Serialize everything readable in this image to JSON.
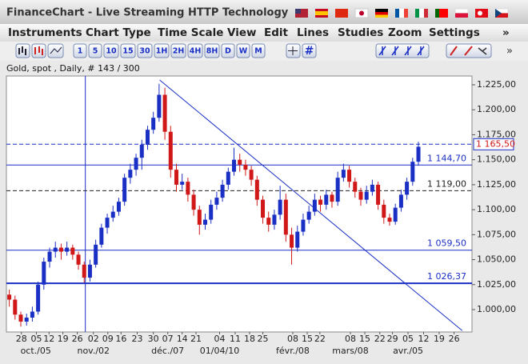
{
  "window": {
    "title": "FinanceChart - Live Streaming HTTP Technology"
  },
  "menu": [
    "Instruments",
    "Chart Type",
    "Time Scale",
    "View",
    "Edit",
    "Lines",
    "Studies",
    "Zoom",
    "Settings",
    "»"
  ],
  "toolbar": [
    "1",
    "5",
    "10",
    "15",
    "30",
    "1H",
    "2H",
    "4H",
    "8H",
    "D",
    "W",
    "M"
  ],
  "chart_data": {
    "type": "candlestick",
    "title": "Gold, spot , Daily, # 143 / 300",
    "candles": [
      [
        1015,
        1020,
        1003,
        1010
      ],
      [
        1010,
        1014,
        990,
        995
      ],
      [
        995,
        998,
        983,
        988
      ],
      [
        988,
        996,
        984,
        992
      ],
      [
        992,
        1003,
        988,
        998
      ],
      [
        998,
        1028,
        995,
        1025
      ],
      [
        1025,
        1052,
        1020,
        1048
      ],
      [
        1048,
        1062,
        1042,
        1058
      ],
      [
        1058,
        1068,
        1052,
        1062
      ],
      [
        1062,
        1066,
        1050,
        1058
      ],
      [
        1058,
        1068,
        1054,
        1062
      ],
      [
        1062,
        1065,
        1050,
        1055
      ],
      [
        1055,
        1058,
        1040,
        1045
      ],
      [
        1045,
        1048,
        1027,
        1032
      ],
      [
        1032,
        1050,
        1028,
        1045
      ],
      [
        1045,
        1070,
        1042,
        1065
      ],
      [
        1065,
        1086,
        1062,
        1082
      ],
      [
        1082,
        1096,
        1076,
        1092
      ],
      [
        1092,
        1104,
        1088,
        1098
      ],
      [
        1098,
        1112,
        1094,
        1108
      ],
      [
        1108,
        1136,
        1104,
        1132
      ],
      [
        1132,
        1146,
        1126,
        1140
      ],
      [
        1140,
        1156,
        1134,
        1152
      ],
      [
        1152,
        1170,
        1140,
        1165
      ],
      [
        1165,
        1184,
        1160,
        1180
      ],
      [
        1180,
        1198,
        1176,
        1192
      ],
      [
        1192,
        1226,
        1188,
        1215
      ],
      [
        1215,
        1222,
        1170,
        1178
      ],
      [
        1178,
        1184,
        1132,
        1140
      ],
      [
        1140,
        1146,
        1118,
        1125
      ],
      [
        1125,
        1136,
        1120,
        1128
      ],
      [
        1128,
        1132,
        1108,
        1115
      ],
      [
        1115,
        1120,
        1094,
        1100
      ],
      [
        1100,
        1104,
        1075,
        1085
      ],
      [
        1085,
        1096,
        1080,
        1090
      ],
      [
        1090,
        1110,
        1086,
        1105
      ],
      [
        1105,
        1118,
        1100,
        1112
      ],
      [
        1112,
        1130,
        1108,
        1125
      ],
      [
        1125,
        1142,
        1120,
        1138
      ],
      [
        1138,
        1162,
        1134,
        1150
      ],
      [
        1150,
        1156,
        1138,
        1145
      ],
      [
        1145,
        1150,
        1134,
        1140
      ],
      [
        1140,
        1144,
        1124,
        1130
      ],
      [
        1130,
        1134,
        1104,
        1110
      ],
      [
        1110,
        1114,
        1086,
        1092
      ],
      [
        1092,
        1098,
        1078,
        1085
      ],
      [
        1085,
        1100,
        1080,
        1095
      ],
      [
        1095,
        1124,
        1090,
        1110
      ],
      [
        1110,
        1116,
        1068,
        1075
      ],
      [
        1075,
        1082,
        1045,
        1062
      ],
      [
        1062,
        1084,
        1058,
        1078
      ],
      [
        1078,
        1096,
        1074,
        1090
      ],
      [
        1090,
        1104,
        1086,
        1098
      ],
      [
        1098,
        1116,
        1094,
        1110
      ],
      [
        1110,
        1114,
        1098,
        1105
      ],
      [
        1105,
        1120,
        1100,
        1115
      ],
      [
        1115,
        1118,
        1102,
        1108
      ],
      [
        1108,
        1138,
        1104,
        1132
      ],
      [
        1132,
        1146,
        1128,
        1140
      ],
      [
        1140,
        1144,
        1122,
        1128
      ],
      [
        1128,
        1132,
        1112,
        1118
      ],
      [
        1118,
        1122,
        1104,
        1110
      ],
      [
        1110,
        1124,
        1106,
        1118
      ],
      [
        1118,
        1130,
        1114,
        1125
      ],
      [
        1125,
        1128,
        1100,
        1105
      ],
      [
        1105,
        1110,
        1086,
        1092
      ],
      [
        1092,
        1096,
        1084,
        1088
      ],
      [
        1088,
        1106,
        1085,
        1102
      ],
      [
        1102,
        1120,
        1098,
        1115
      ],
      [
        1115,
        1132,
        1110,
        1128
      ],
      [
        1128,
        1152,
        1124,
        1148
      ],
      [
        1148,
        1168,
        1144,
        1163
      ]
    ],
    "up_color": "#1a2fc4",
    "down_color": "#d01818",
    "xlim": [
      -0.5,
      80.3
    ],
    "ylim": [
      977.6,
      1233.8
    ],
    "yticks": [
      {
        "value": 1000,
        "label": "1.000,00"
      },
      {
        "value": 1025,
        "label": "1.025,00"
      },
      {
        "value": 1050,
        "label": "1.050,00"
      },
      {
        "value": 1075,
        "label": "1.075,00"
      },
      {
        "value": 1100,
        "label": "1.100,00"
      },
      {
        "value": 1125,
        "label": "1.125,00"
      },
      {
        "value": 1150,
        "label": "1.150,00"
      },
      {
        "value": 1175,
        "label": "1.175,00"
      },
      {
        "value": 1200,
        "label": "1.200,00"
      },
      {
        "value": 1225,
        "label": "1.225,00"
      }
    ],
    "xticks": [
      {
        "value": 2.1,
        "label": "28"
      },
      {
        "value": 4.7,
        "label": "05"
      },
      {
        "value": 6.9,
        "label": "12"
      },
      {
        "value": 9.3,
        "label": "19"
      },
      {
        "value": 11.8,
        "label": "26"
      },
      {
        "value": 14.6,
        "label": "02"
      },
      {
        "value": 17.1,
        "label": "09"
      },
      {
        "value": 19.4,
        "label": "16"
      },
      {
        "value": 22.2,
        "label": "23"
      },
      {
        "value": 25,
        "label": "30"
      },
      {
        "value": 27.5,
        "label": "07"
      },
      {
        "value": 30,
        "label": "14"
      },
      {
        "value": 32.4,
        "label": "21"
      },
      {
        "value": 36.5,
        "label": "04"
      },
      {
        "value": 39.2,
        "label": "11"
      },
      {
        "value": 41.7,
        "label": "18"
      },
      {
        "value": 44,
        "label": "25"
      },
      {
        "value": 49.2,
        "label": "08"
      },
      {
        "value": 51.7,
        "label": "15"
      },
      {
        "value": 53.9,
        "label": "22"
      },
      {
        "value": 59.2,
        "label": "08"
      },
      {
        "value": 61.7,
        "label": "15"
      },
      {
        "value": 64.3,
        "label": "22"
      },
      {
        "value": 66.5,
        "label": "29"
      },
      {
        "value": 69.2,
        "label": "05"
      },
      {
        "value": 71.9,
        "label": "12"
      },
      {
        "value": 74.6,
        "label": "19"
      },
      {
        "value": 77.2,
        "label": "26"
      }
    ],
    "month_ticks": [
      {
        "value": 4.6,
        "label": "oct./05"
      },
      {
        "value": 14.6,
        "label": "nov./02"
      },
      {
        "value": 27.5,
        "label": "déc./07"
      },
      {
        "value": 36.5,
        "label": "01/04/10"
      },
      {
        "value": 49.2,
        "label": "févr./08"
      },
      {
        "value": 59.2,
        "label": "mars/08"
      },
      {
        "value": 69.2,
        "label": "avr./05"
      }
    ],
    "levels": [
      {
        "value": 1165.5,
        "label": "1 165,50",
        "style": "dashed",
        "color": "#1a2fc4",
        "boxed": true
      },
      {
        "value": 1144.7,
        "label": "1 144,70",
        "style": "solid",
        "color": "#1a2fc4"
      },
      {
        "value": 1119,
        "label": "1 119,00",
        "style": "dashed",
        "color": "#222222"
      },
      {
        "value": 1059.5,
        "label": "1 059,50",
        "style": "solid",
        "color": "#1a2fc4"
      },
      {
        "value": 1026.37,
        "label": "1 026,37",
        "style": "thick",
        "color": "#1a2fc4"
      }
    ],
    "vertical_line": 13.2,
    "trend_line": [
      [
        26.1,
        1229.8
      ],
      [
        78.6,
        979
      ]
    ]
  }
}
